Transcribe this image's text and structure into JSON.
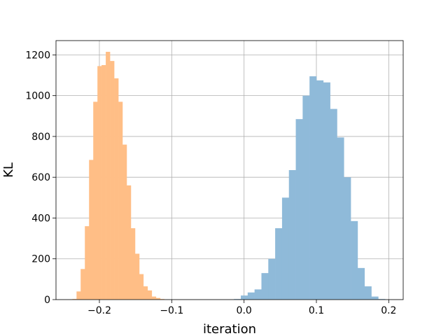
{
  "chart_data": {
    "type": "bar",
    "title": "",
    "xlabel": "iteration",
    "ylabel": "KL",
    "xlim": [
      -0.26,
      0.22
    ],
    "ylim": [
      0,
      1270
    ],
    "grid": true,
    "legend": "none",
    "x_ticks": [
      {
        "value": -0.2,
        "label": "−0.2"
      },
      {
        "value": -0.1,
        "label": "−0.1"
      },
      {
        "value": 0.0,
        "label": "0.0"
      },
      {
        "value": 0.1,
        "label": "0.1"
      },
      {
        "value": 0.2,
        "label": "0.2"
      }
    ],
    "y_ticks": [
      {
        "value": 0,
        "label": "0"
      },
      {
        "value": 200,
        "label": "200"
      },
      {
        "value": 400,
        "label": "400"
      },
      {
        "value": 600,
        "label": "600"
      },
      {
        "value": 800,
        "label": "800"
      },
      {
        "value": 1000,
        "label": "1000"
      },
      {
        "value": 1200,
        "label": "1200"
      }
    ],
    "series": [
      {
        "color": "#ffbe86",
        "bins": [
          [
            -0.2374,
            -0.2316,
            3
          ],
          [
            -0.2316,
            -0.2259,
            40
          ],
          [
            -0.2259,
            -0.2201,
            150
          ],
          [
            -0.2201,
            -0.2143,
            360
          ],
          [
            -0.2143,
            -0.2085,
            685
          ],
          [
            -0.2085,
            -0.2027,
            970
          ],
          [
            -0.2027,
            -0.197,
            1145
          ],
          [
            -0.197,
            -0.1912,
            1150
          ],
          [
            -0.1912,
            -0.1854,
            1215
          ],
          [
            -0.1854,
            -0.1796,
            1170
          ],
          [
            -0.1796,
            -0.1738,
            1085
          ],
          [
            -0.1738,
            -0.1681,
            970
          ],
          [
            -0.1681,
            -0.1623,
            760
          ],
          [
            -0.1623,
            -0.1565,
            560
          ],
          [
            -0.1565,
            -0.1507,
            350
          ],
          [
            -0.1507,
            -0.1449,
            225
          ],
          [
            -0.1449,
            -0.1392,
            125
          ],
          [
            -0.1392,
            -0.1334,
            65
          ],
          [
            -0.1334,
            -0.1276,
            45
          ],
          [
            -0.1276,
            -0.1218,
            15
          ],
          [
            -0.1218,
            -0.116,
            8
          ],
          [
            -0.116,
            -0.1103,
            3
          ]
        ]
      },
      {
        "color": "#8fbad9",
        "bins": [
          [
            -0.014,
            -0.0045,
            3
          ],
          [
            -0.0045,
            0.005,
            20
          ],
          [
            0.005,
            0.0145,
            35
          ],
          [
            0.0145,
            0.024,
            50
          ],
          [
            0.024,
            0.0335,
            130
          ],
          [
            0.0335,
            0.043,
            200
          ],
          [
            0.043,
            0.0525,
            350
          ],
          [
            0.0525,
            0.062,
            500
          ],
          [
            0.062,
            0.0715,
            635
          ],
          [
            0.0715,
            0.081,
            885
          ],
          [
            0.081,
            0.0905,
            1000
          ],
          [
            0.0905,
            0.1,
            1095
          ],
          [
            0.1,
            0.1095,
            1075
          ],
          [
            0.1095,
            0.119,
            1065
          ],
          [
            0.119,
            0.1285,
            935
          ],
          [
            0.1285,
            0.138,
            795
          ],
          [
            0.138,
            0.1475,
            600
          ],
          [
            0.1475,
            0.157,
            385
          ],
          [
            0.157,
            0.1665,
            155
          ],
          [
            0.1665,
            0.176,
            65
          ],
          [
            0.176,
            0.1855,
            15
          ],
          [
            0.1855,
            0.195,
            3
          ]
        ]
      }
    ]
  }
}
